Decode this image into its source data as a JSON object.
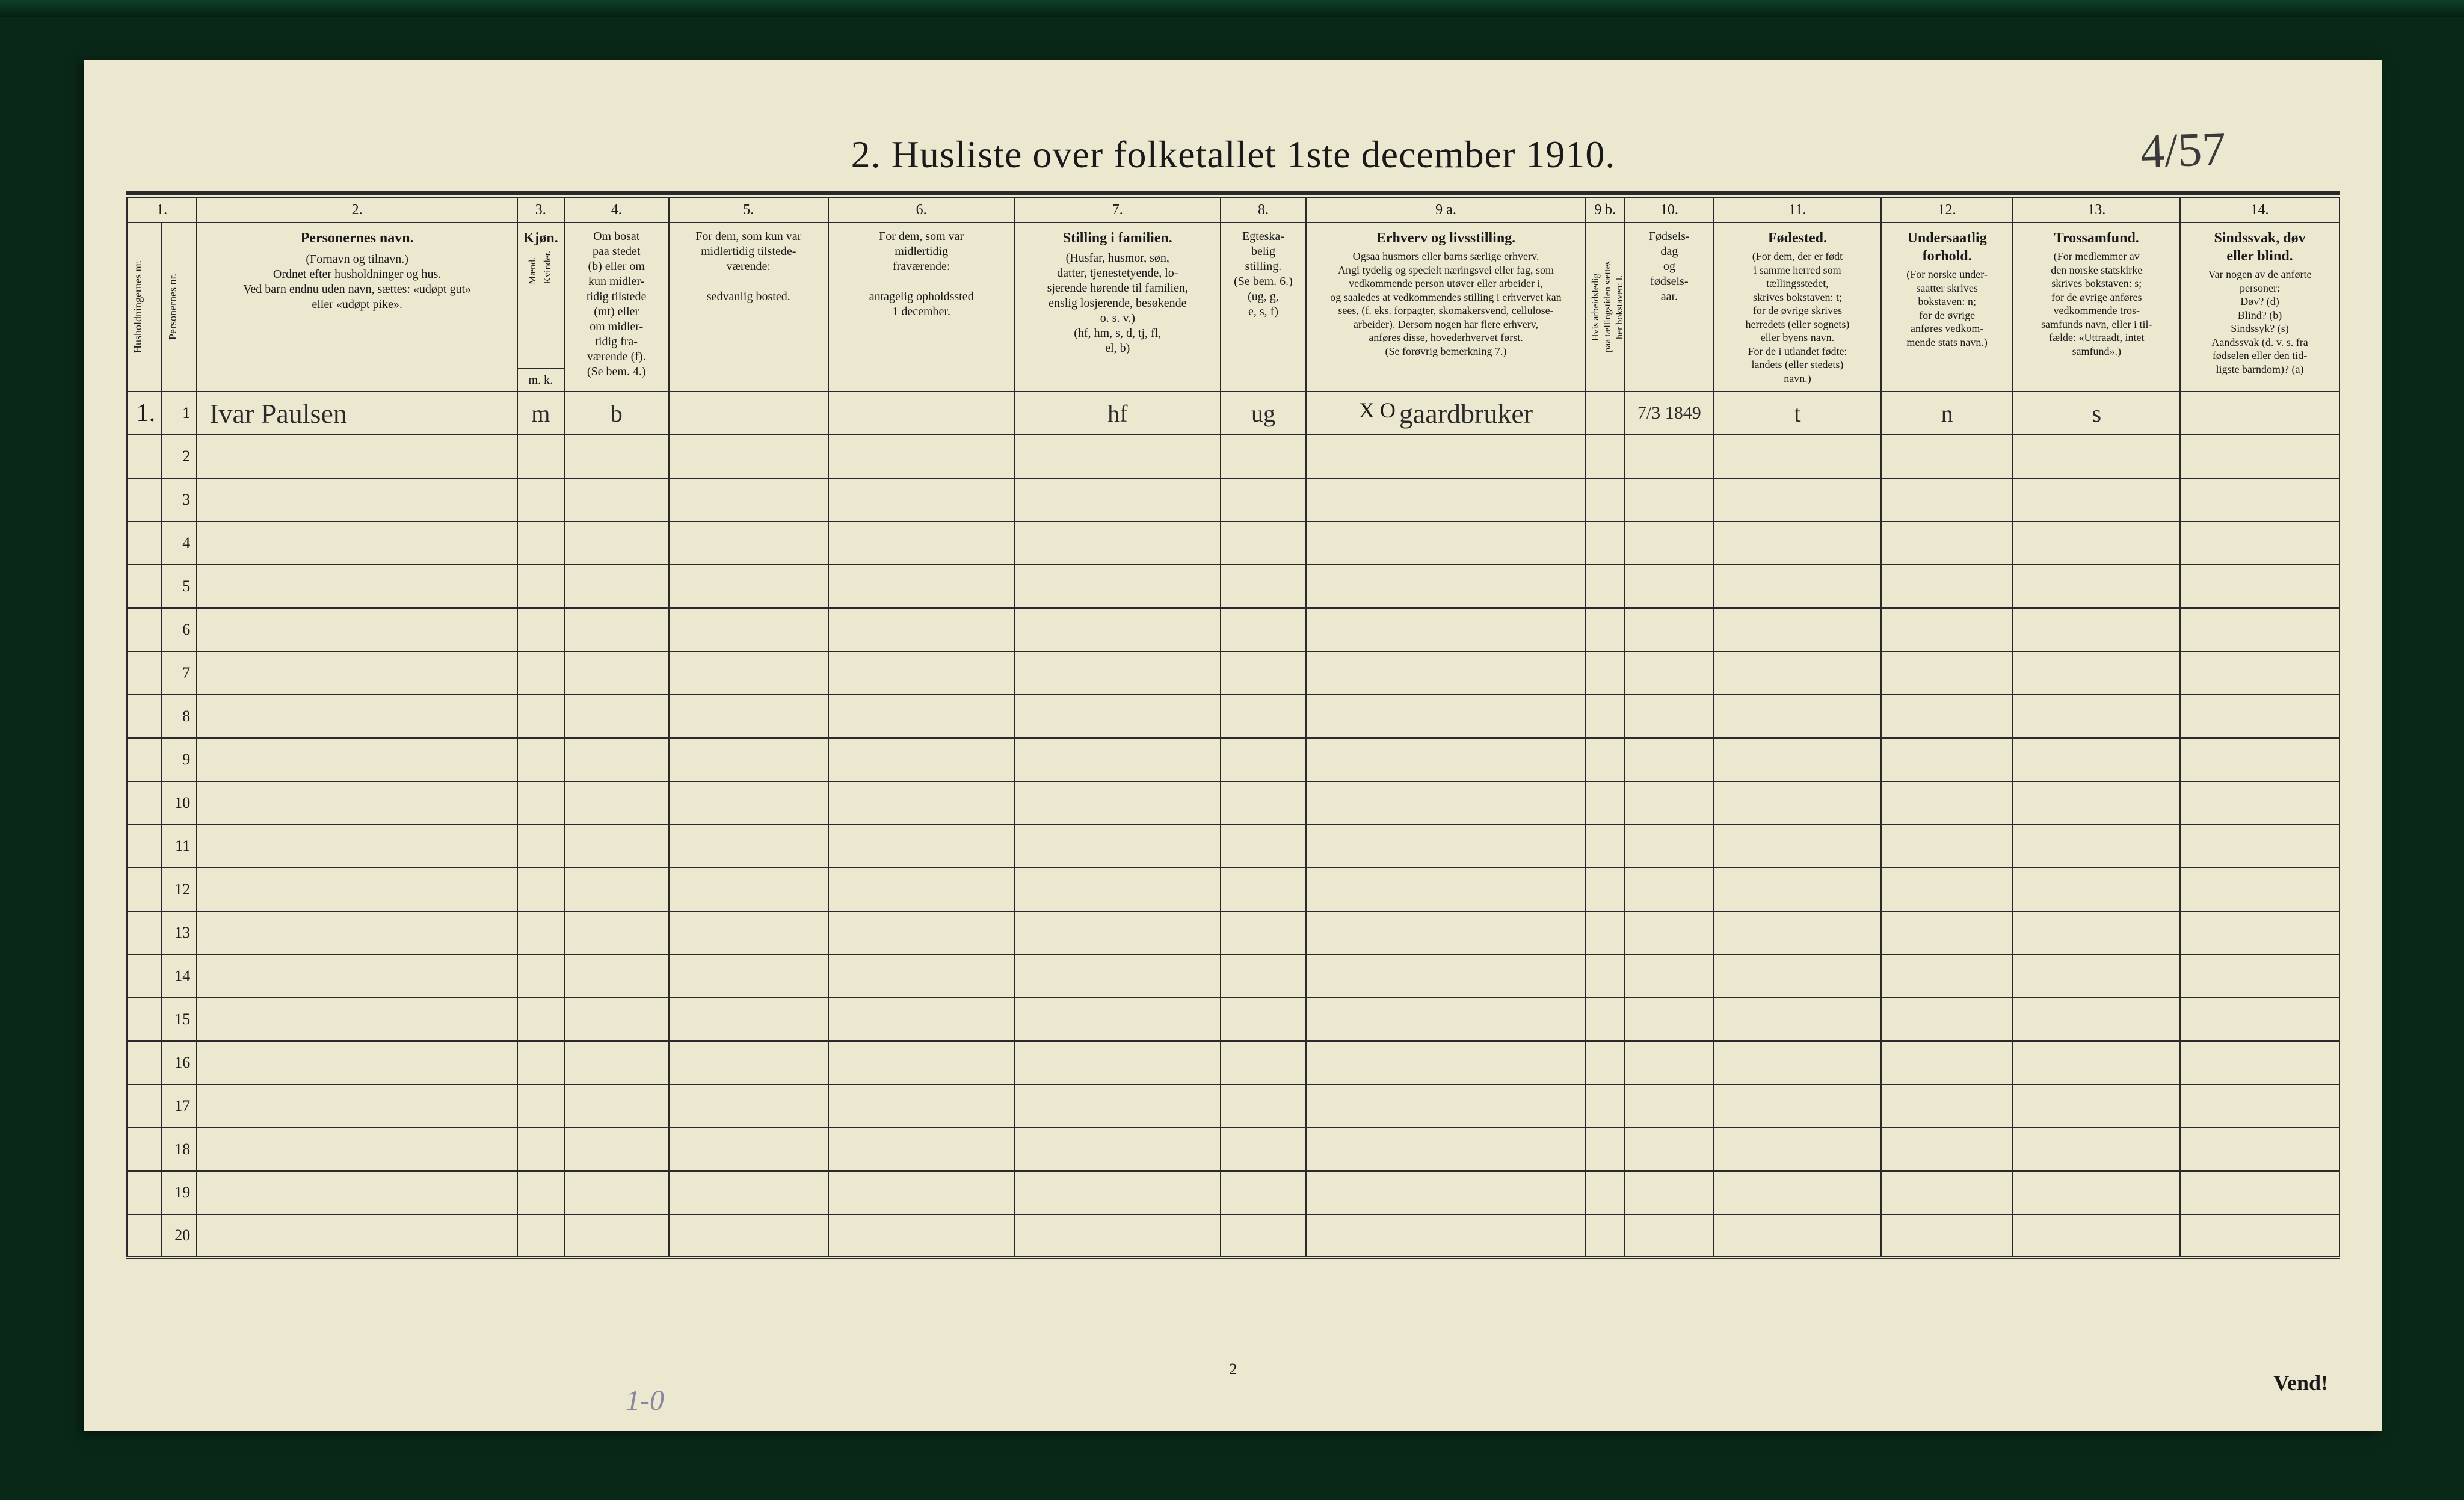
{
  "title": "2.   Husliste over folketallet 1ste december 1910.",
  "annotation_topright": "4/57",
  "footer_page_number": "2",
  "footer_right": "Vend!",
  "pencil_bottom": "1-0",
  "columns": {
    "widths_pct": [
      1.8,
      1.8,
      16.5,
      2.4,
      5.4,
      8.2,
      9.6,
      10.6,
      4.4,
      14.4,
      2.0,
      4.6,
      8.6,
      6.8,
      8.6,
      8.2
    ],
    "numbers": [
      "1.",
      "2.",
      "3.",
      "4.",
      "5.",
      "6.",
      "7.",
      "8.",
      "9 a.",
      "9 b.",
      "10.",
      "11.",
      "12.",
      "13.",
      "14."
    ],
    "h1_rownum": "Husholdningernes nr.",
    "h1_personnr": "Personernes nr.",
    "h2_names_bold": "Personernes navn.",
    "h2_names_rest": "(Fornavn og tilnavn.)\nOrdnet efter husholdninger og hus.\nVed barn endnu uden navn, sættes: «udøpt gut»\neller «udøpt pike».",
    "h3_bold": "Kjøn.",
    "h3_sub_m": "Mænd.",
    "h3_sub_k": "Kvinder.",
    "h3_foot": "m. k.",
    "h4": "Om bosat\npaa stedet\n(b) eller om\nkun midler-\ntidig tilstede\n(mt) eller\nom midler-\ntidig fra-\nværende (f).\n(Se bem. 4.)",
    "h5": "For dem, som kun var\nmidlertidig tilstede-\nværende:\n\nsedvanlig bosted.",
    "h6": "For dem, som var\nmidlertidig\nfraværende:\n\nantagelig opholdssted\n1 december.",
    "h7_bold": "Stilling i familien.",
    "h7_rest": "(Husfar, husmor, søn,\ndatter, tjenestetyende, lo-\nsjerende hørende til familien,\nenslig losjerende, besøkende\no. s. v.)\n(hf, hm, s, d, tj, fl,\nel, b)",
    "h8": "Egteska-\nbelig\nstilling.\n(Se bem. 6.)\n(ug, g,\ne, s, f)",
    "h9a_bold": "Erhverv og livsstilling.",
    "h9a_rest": "Ogsaa husmors eller barns særlige erhverv.\nAngi tydelig og specielt næringsvei eller fag, som\nvedkommende person utøver eller arbeider i,\nog saaledes at vedkommendes stilling i erhvervet kan\nsees, (f. eks. forpagter, skomakersvend, cellulose-\narbeider). Dersom nogen har flere erhverv,\nanføres disse, hovederhvervet først.\n(Se forøvrig bemerkning 7.)",
    "h9b": "Hvis arbeidsledig\npaa tællingstiden sættes\nher bokstaven: l.",
    "h10": "Fødsels-\ndag\nog\nfødsels-\naar.",
    "h11_bold": "Fødested.",
    "h11_rest": "(For dem, der er født\ni samme herred som\ntællingsstedet,\nskrives bokstaven: t;\nfor de øvrige skrives\nherredets (eller sognets)\neller byens navn.\nFor de i utlandet fødte:\nlandets (eller stedets)\nnavn.)",
    "h12_bold": "Undersaatlig\nforhold.",
    "h12_rest": "(For norske under-\nsaatter skrives\nbokstaven: n;\nfor de øvrige\nanføres vedkom-\nmende stats navn.)",
    "h13_bold": "Trossamfund.",
    "h13_rest": "(For medlemmer av\nden norske statskirke\nskrives bokstaven: s;\nfor de øvrige anføres\nvedkommende tros-\nsamfunds navn, eller i til-\nfælde: «Uttraadt, intet\nsamfund».)",
    "h14_bold": "Sindssvak, døv\neller blind.",
    "h14_rest": "Var nogen av de anførte\npersoner:\nDøv?          (d)\nBlind?         (b)\nSindssyk?   (s)\nAandssvak (d. v. s. fra\nfødselen eller den tid-\nligste barndom)?  (a)"
  },
  "rows": [
    {
      "hh": "1.",
      "pn": "1",
      "name": "Ivar Paulsen",
      "sex": "m",
      "res": "b",
      "c5": "",
      "c6": "",
      "famstill": "hf",
      "egte": "ug",
      "erhverv_prefix": "X O",
      "erhverv": "gaardbruker",
      "c9b": "",
      "fdato": "7/3 1849",
      "fsted": "t",
      "under": "n",
      "tros": "s",
      "c14": ""
    }
  ],
  "blank_row_count": 19,
  "colors": {
    "paper": "#ece8d0",
    "ink": "#1a1a1a",
    "border": "#2a2a2a",
    "frame": "#0a2818",
    "pencil": "#8a85a0"
  }
}
